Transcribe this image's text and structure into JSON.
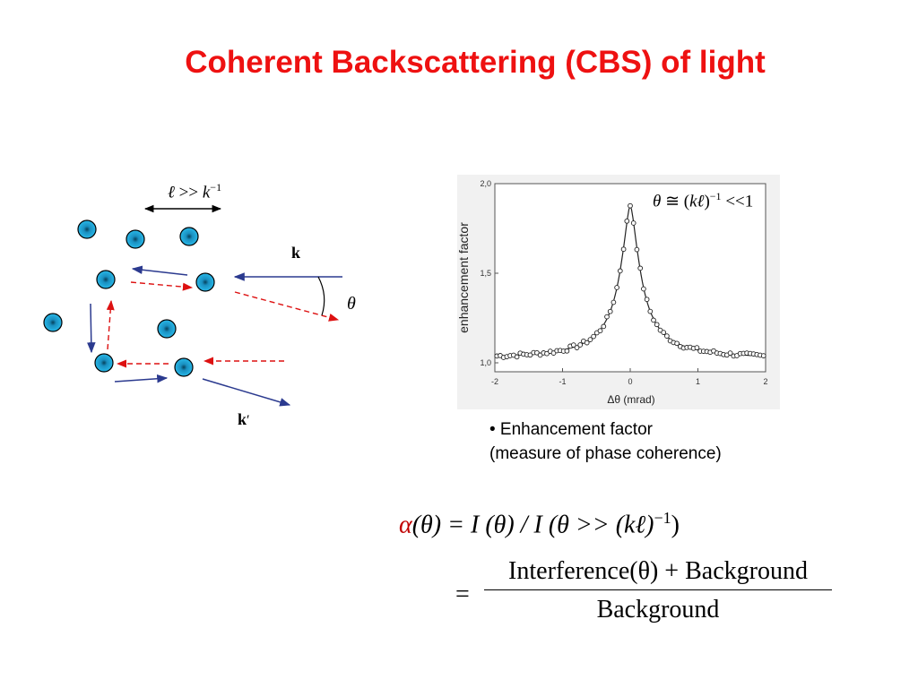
{
  "slide": {
    "title": "Coherent Backscattering (CBS) of light"
  },
  "diagram": {
    "length_condition": {
      "ell": "ℓ",
      "op": " >> ",
      "k": "k",
      "sup": "−1"
    },
    "k_in_label": "k",
    "k_out_label": "k",
    "k_out_prime": "′",
    "angle_label": "θ",
    "scatterer_color": "#1ea8d8",
    "path_forward_color": "#2b3a8f",
    "path_reverse_color": "#dd1111"
  },
  "plot": {
    "ylabel": "enhancement factor",
    "xlabel": "Δθ (mrad)",
    "annotation": {
      "theta": "θ",
      "approx": " ≅ (",
      "k": "kℓ",
      "close": ")",
      "sup": "−1",
      "tail": " <<1"
    }
  },
  "chart_data": {
    "type": "scatter",
    "title": "",
    "xlabel": "Δθ (mrad)",
    "ylabel": "enhancement factor",
    "xlim": [
      -2,
      2
    ],
    "ylim": [
      0.95,
      2.0
    ],
    "x_ticks": [
      "-2",
      "-1",
      "0",
      "1",
      "2"
    ],
    "y_ticks": [
      "1,0",
      "1,5",
      "2,0"
    ],
    "x_tick_values": [
      -2,
      -1,
      0,
      1,
      2
    ],
    "y_tick_values": [
      1.0,
      1.5,
      2.0
    ],
    "peak": {
      "x": 0,
      "y": 1.88
    },
    "half_width": 0.18,
    "baseline": 1.02,
    "series": [
      {
        "kind": "points",
        "style": "open-circle"
      },
      {
        "kind": "fit-line",
        "style": "solid"
      }
    ]
  },
  "bullet": {
    "line1": "• Enhancement factor",
    "line2": "(measure of phase coherence)"
  },
  "equations": {
    "eq1": {
      "alpha": "α",
      "lhs_rest": "(θ) = I (θ) / I (θ >> (kℓ)",
      "sup": "−1",
      "close": ")"
    },
    "eq2": {
      "eq_sign": "=",
      "numerator": "Interference(θ) + Background",
      "denominator": "Background"
    }
  }
}
